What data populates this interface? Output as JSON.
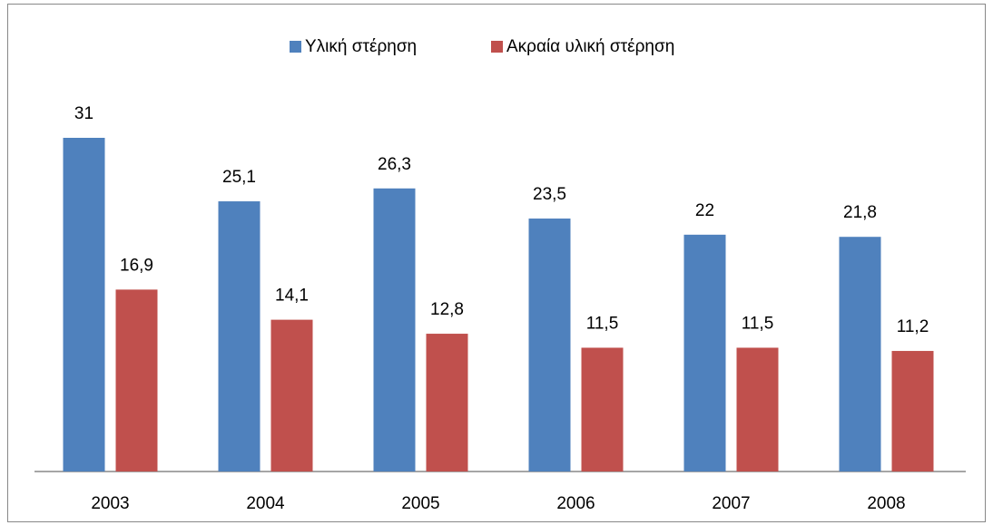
{
  "chart_data": {
    "type": "bar",
    "categories": [
      "2003",
      "2004",
      "2005",
      "2006",
      "2007",
      "2008"
    ],
    "series": [
      {
        "name": "Υλική στέρηση",
        "color": "#4f81bd",
        "values": [
          31,
          25.1,
          26.3,
          23.5,
          22,
          21.8
        ],
        "value_labels": [
          "31",
          "25,1",
          "26,3",
          "23,5",
          "22",
          "21,8"
        ]
      },
      {
        "name": "Ακραία υλική στέρηση",
        "color": "#c0504d",
        "values": [
          16.9,
          14.1,
          12.8,
          11.5,
          11.5,
          11.2
        ],
        "value_labels": [
          "16,9",
          "14,1",
          "12,8",
          "11,5",
          "11,5",
          "11,2"
        ]
      }
    ],
    "legend": "top"
  }
}
